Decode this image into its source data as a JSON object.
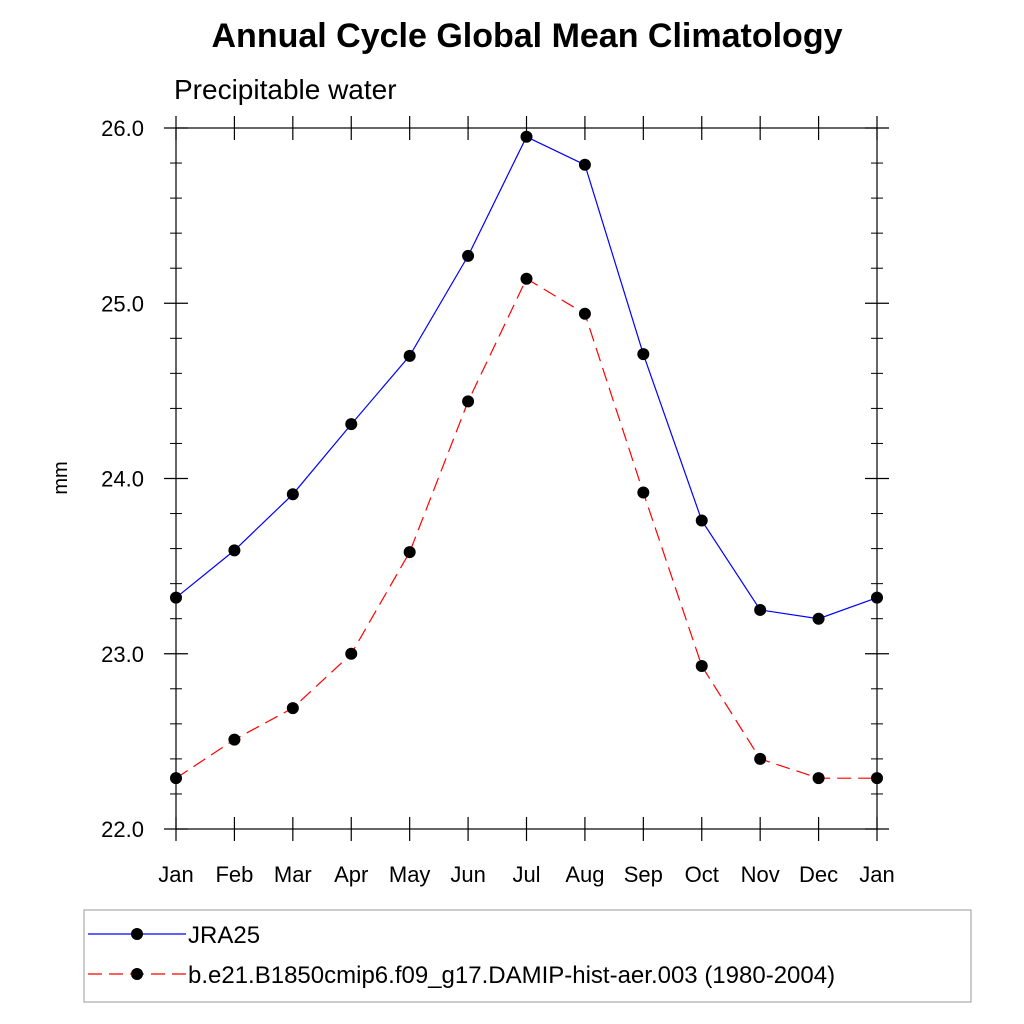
{
  "chart_data": {
    "type": "line",
    "title": "Annual Cycle Global Mean Climatology",
    "subtitle": "Precipitable water",
    "xlabel": "",
    "ylabel": "mm",
    "categories": [
      "Jan",
      "Feb",
      "Mar",
      "Apr",
      "May",
      "Jun",
      "Jul",
      "Aug",
      "Sep",
      "Oct",
      "Nov",
      "Dec",
      "Jan"
    ],
    "ylim": [
      22.0,
      26.0
    ],
    "yticks": [
      "22.0",
      "23.0",
      "24.0",
      "25.0",
      "26.0"
    ],
    "yminor_step": 0.2,
    "grid": false,
    "legend_position": "bottom",
    "series": [
      {
        "name": "JRA25",
        "color": "#0000ff",
        "dash": "solid",
        "marker": "circle",
        "values": [
          23.32,
          23.59,
          23.91,
          24.31,
          24.7,
          25.27,
          25.95,
          25.79,
          24.71,
          23.76,
          23.25,
          23.2,
          23.32
        ]
      },
      {
        "name": "b.e21.B1850cmip6.f09_g17.DAMIP-hist-aer.003 (1980-2004)",
        "color": "#ff0000",
        "dash": "dashed",
        "marker": "circle",
        "values": [
          22.29,
          22.51,
          22.69,
          23.0,
          23.58,
          24.44,
          25.14,
          24.94,
          23.92,
          22.93,
          22.4,
          22.29,
          22.29
        ]
      }
    ]
  }
}
